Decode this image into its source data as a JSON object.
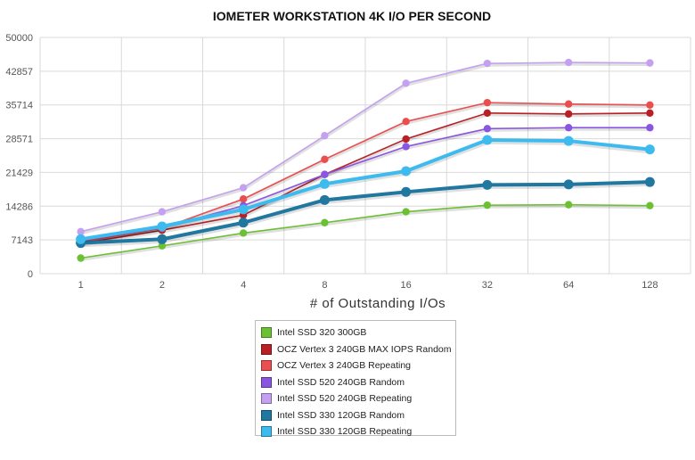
{
  "chart_data": {
    "type": "line",
    "title": "IOMETER WORKSTATION 4K I/O PER SECOND",
    "xlabel": "# of Outstanding I/Os",
    "ylabel": "",
    "categories": [
      "1",
      "2",
      "4",
      "8",
      "16",
      "32",
      "64",
      "128"
    ],
    "y_ticks": [
      "0",
      "7143",
      "14286",
      "21429",
      "28571",
      "35714",
      "42857",
      "50000"
    ],
    "ylim": [
      0,
      50000
    ],
    "grid": true,
    "legend_position": "bottom",
    "series": [
      {
        "name": "Intel SSD 320 300GB",
        "color": "#6cc033",
        "width": 1.6,
        "values": [
          3300,
          5900,
          8600,
          10800,
          13100,
          14500,
          14600,
          14400
        ]
      },
      {
        "name": "OCZ Vertex 3 240GB MAX IOPS Random",
        "color": "#b82025",
        "width": 1.6,
        "values": [
          6400,
          9200,
          12400,
          21000,
          28500,
          34000,
          33800,
          34000
        ]
      },
      {
        "name": "OCZ Vertex 3 240GB Repeating",
        "color": "#ea4e4e",
        "width": 1.6,
        "values": [
          6700,
          9600,
          15800,
          24200,
          32200,
          36200,
          35900,
          35700
        ]
      },
      {
        "name": "Intel SSD 520 240GB Random",
        "color": "#8a55e0",
        "width": 1.6,
        "values": [
          7000,
          9700,
          14400,
          21000,
          26900,
          30700,
          30900,
          30900
        ]
      },
      {
        "name": "Intel SSD 520 240GB Repeating",
        "color": "#c4a0f0",
        "width": 1.6,
        "values": [
          8900,
          13100,
          18200,
          29200,
          40300,
          44500,
          44700,
          44600
        ]
      },
      {
        "name": "Intel SSD 330 120GB Random",
        "color": "#20779f",
        "width": 4,
        "values": [
          6500,
          7300,
          10800,
          15600,
          17300,
          18800,
          18900,
          19400
        ]
      },
      {
        "name": "Intel SSD 330 120GB Repeating",
        "color": "#3dbbee",
        "width": 4,
        "values": [
          7300,
          10000,
          13600,
          19000,
          21700,
          28300,
          28100,
          26300
        ]
      }
    ]
  }
}
